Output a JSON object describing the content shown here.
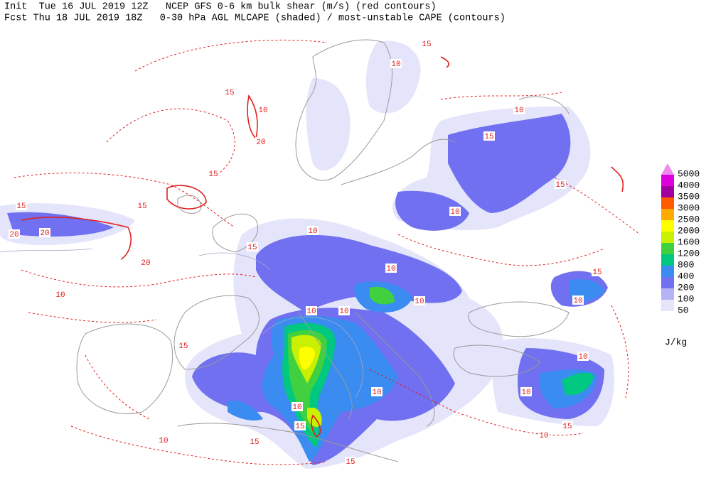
{
  "header": {
    "line1": "Init  Tue 16 JUL 2019 12Z   NCEP GFS 0-6 km bulk shear (m/s) (red contours)",
    "line2": "Fcst Thu 18 JUL 2019 18Z   0-30 hPa AGL MLCAPE (shaded) / most-unstable CAPE (contours)"
  },
  "legend": {
    "levels": [
      {
        "value": 5000,
        "color": "#ee88ee"
      },
      {
        "value": 4000,
        "color": "#dd00dd"
      },
      {
        "value": 3500,
        "color": "#a000a0"
      },
      {
        "value": 3000,
        "color": "#ff5a00"
      },
      {
        "value": 2500,
        "color": "#ffaa00"
      },
      {
        "value": 2000,
        "color": "#ffff00"
      },
      {
        "value": 1600,
        "color": "#c8f000"
      },
      {
        "value": 1200,
        "color": "#40d040"
      },
      {
        "value": 800,
        "color": "#00c880"
      },
      {
        "value": 400,
        "color": "#3a8cf0"
      },
      {
        "value": 200,
        "color": "#7070f0"
      },
      {
        "value": 100,
        "color": "#b4b4f4"
      },
      {
        "value": 50,
        "color": "#e4e4fa"
      }
    ],
    "unit": "J/kg"
  },
  "contour_labels": [
    15,
    10,
    10,
    15,
    20,
    15,
    15,
    10,
    10,
    15,
    10,
    15,
    10,
    10,
    10,
    10,
    15,
    10,
    10,
    10,
    10,
    10,
    15,
    15,
    15,
    15,
    20,
    15,
    20,
    10,
    15,
    20,
    10,
    15,
    10
  ]
}
